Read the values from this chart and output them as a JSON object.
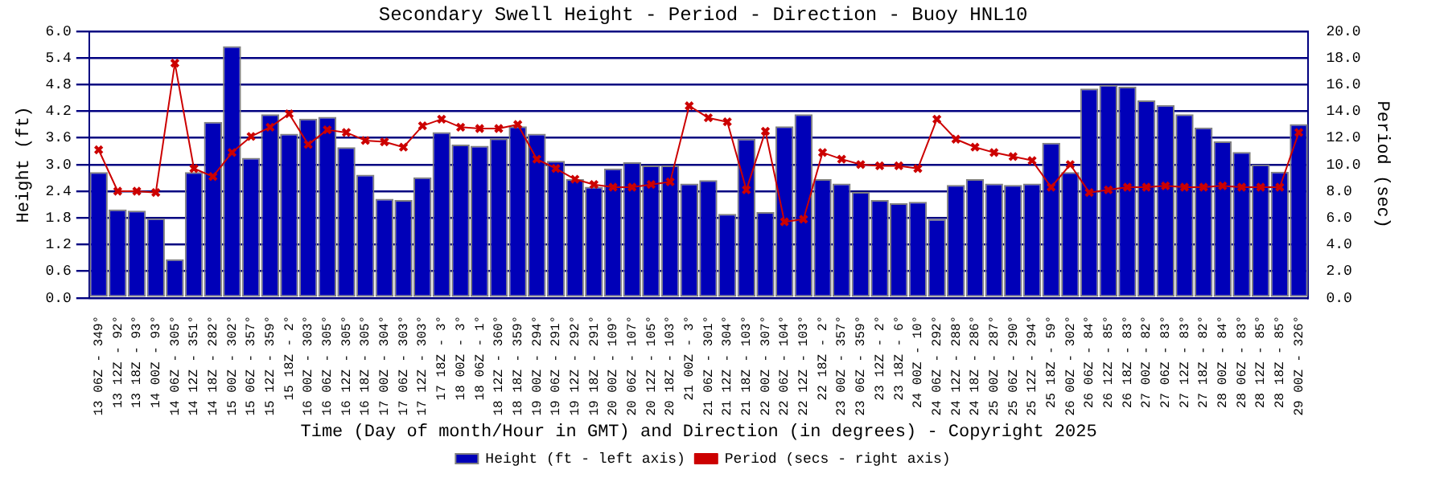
{
  "chart_data": {
    "type": "bar",
    "title": "Secondary Swell Height - Period - Direction - Buoy HNL10",
    "xlabel": "Time (Day of month/Hour in GMT) and Direction (in degrees) - Copyright 2025",
    "ylabel": "Height (ft)",
    "y2label": "Period (sec)",
    "categories": [
      "13 06Z - 349°",
      "13 12Z - 92°",
      "13 18Z - 93°",
      "14 00Z - 93°",
      "14 06Z - 305°",
      "14 12Z - 351°",
      "14 18Z - 282°",
      "15 00Z - 302°",
      "15 06Z - 357°",
      "15 12Z - 359°",
      "15 18Z - 2°",
      "16 00Z - 303°",
      "16 06Z - 305°",
      "16 12Z - 305°",
      "16 18Z - 305°",
      "17 00Z - 304°",
      "17 06Z - 303°",
      "17 12Z - 303°",
      "17 18Z - 3°",
      "18 00Z - 3°",
      "18 06Z - 1°",
      "18 12Z - 360°",
      "18 18Z - 359°",
      "19 00Z - 294°",
      "19 06Z - 291°",
      "19 12Z - 292°",
      "19 18Z - 291°",
      "20 00Z - 109°",
      "20 06Z - 107°",
      "20 12Z - 105°",
      "20 18Z - 103°",
      "21 00Z - 3°",
      "21 06Z - 301°",
      "21 12Z - 304°",
      "21 18Z - 103°",
      "22 00Z - 307°",
      "22 06Z - 104°",
      "22 12Z - 103°",
      "22 18Z - 2°",
      "23 00Z - 357°",
      "23 06Z - 359°",
      "23 12Z - 2°",
      "23 18Z - 6°",
      "24 00Z - 10°",
      "24 06Z - 292°",
      "24 12Z - 288°",
      "24 18Z - 286°",
      "25 00Z - 287°",
      "25 06Z - 290°",
      "25 12Z - 294°",
      "25 18Z - 59°",
      "26 00Z - 302°",
      "26 06Z - 84°",
      "26 12Z - 85°",
      "26 18Z - 83°",
      "27 00Z - 82°",
      "27 06Z - 83°",
      "27 12Z - 83°",
      "27 18Z - 82°",
      "28 00Z - 84°",
      "28 06Z - 83°",
      "28 12Z - 85°",
      "28 18Z - 85°",
      "29 00Z - 326°"
    ],
    "series": [
      {
        "name": "Height (ft - left axis)",
        "color": "#0000b8",
        "values": [
          2.83,
          1.99,
          1.96,
          1.79,
          0.87,
          2.83,
          3.96,
          5.66,
          3.15,
          4.13,
          3.69,
          4.03,
          4.07,
          3.39,
          2.77,
          2.23,
          2.2,
          2.71,
          3.73,
          3.45,
          3.42,
          3.59,
          3.86,
          3.69,
          3.08,
          2.67,
          2.5,
          2.91,
          3.05,
          2.98,
          2.98,
          2.57,
          2.65,
          1.89,
          3.58,
          1.93,
          3.86,
          4.13,
          2.67,
          2.57,
          2.38,
          2.2,
          2.13,
          2.16,
          1.77,
          2.54,
          2.67,
          2.57,
          2.54,
          2.57,
          3.49,
          2.83,
          4.71,
          4.79,
          4.75,
          4.44,
          4.34,
          4.13,
          3.83,
          3.52,
          3.28,
          3.0,
          2.84,
          3.91
        ]
      },
      {
        "name": "Period (secs - right axis)",
        "type": "line",
        "axis": "y2",
        "color": "#cc0000",
        "values": [
          11.1,
          8.0,
          8.0,
          7.9,
          17.6,
          9.7,
          9.1,
          10.9,
          12.1,
          12.8,
          13.8,
          11.5,
          12.6,
          12.4,
          11.8,
          11.7,
          11.3,
          12.9,
          13.4,
          12.8,
          12.7,
          12.7,
          13.0,
          10.4,
          9.7,
          8.9,
          8.5,
          8.3,
          8.3,
          8.5,
          8.7,
          14.4,
          13.5,
          13.2,
          8.1,
          12.5,
          5.7,
          5.9,
          10.9,
          10.4,
          10.0,
          9.9,
          9.9,
          9.7,
          13.4,
          11.9,
          11.3,
          10.9,
          10.6,
          10.3,
          8.3,
          10.0,
          7.9,
          8.1,
          8.3,
          8.3,
          8.4,
          8.3,
          8.3,
          8.4,
          8.3,
          8.3,
          8.3,
          12.4
        ]
      }
    ],
    "ylim": [
      0,
      6
    ],
    "yticks": [
      {
        "value": 0,
        "label": "0.0"
      },
      {
        "value": 0.6,
        "label": "0.6"
      },
      {
        "value": 1.2,
        "label": "1.2"
      },
      {
        "value": 1.8,
        "label": "1.8"
      },
      {
        "value": 2.4,
        "label": "2.4"
      },
      {
        "value": 3,
        "label": "3.0"
      },
      {
        "value": 3.6,
        "label": "3.6"
      },
      {
        "value": 4.2,
        "label": "4.2"
      },
      {
        "value": 4.8,
        "label": "4.8"
      },
      {
        "value": 5.4,
        "label": "5.4"
      },
      {
        "value": 6,
        "label": "6.0"
      }
    ],
    "y2lim": [
      0,
      20
    ],
    "y2ticks": [
      {
        "value": 0,
        "label": "0.0"
      },
      {
        "value": 2,
        "label": "2.0"
      },
      {
        "value": 4,
        "label": "4.0"
      },
      {
        "value": 6,
        "label": "6.0"
      },
      {
        "value": 8,
        "label": "8.0"
      },
      {
        "value": 10,
        "label": "10.0"
      },
      {
        "value": 12,
        "label": "12.0"
      },
      {
        "value": 14,
        "label": "14.0"
      },
      {
        "value": 16,
        "label": "16.0"
      },
      {
        "value": 18,
        "label": "18.0"
      },
      {
        "value": 20,
        "label": "20.0"
      }
    ],
    "grid": "y",
    "legend": "bottom",
    "marker": "cross",
    "line_style": "solid"
  }
}
